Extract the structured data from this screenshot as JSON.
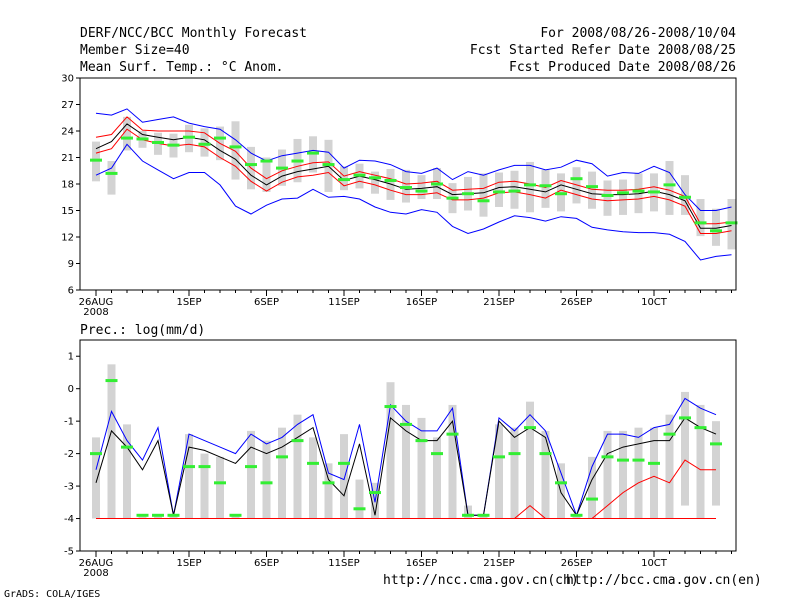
{
  "header": {
    "title": "DERF/NCC/BCC Monthly Forecast",
    "member": "Member Size=40",
    "variable": "Mean Surf. Temp.: °C Anom.",
    "period": "For 2008/08/26-2008/10/04",
    "started": "Fcst Started Refer Date 2008/08/25",
    "produced": "Fcst Produced Date 2008/08/26"
  },
  "prec_label": "Prec.: log(mm/d)",
  "footer": {
    "credit": "GrADS: COLA/IGES",
    "url_ncc": "http://ncc.cma.gov.cn(ch)",
    "url_bcc": "http://bcc.cma.gov.cn(en)"
  },
  "colors": {
    "blue": "#0000ff",
    "red": "#ff0000",
    "black": "#000000",
    "green": "#33ee33",
    "box": "#d3d3d3"
  },
  "chart_data": [
    {
      "type": "line",
      "title": "Mean Surf. Temp.: °C Anom.",
      "ylim": [
        6,
        30
      ],
      "yticks": [
        6,
        9,
        12,
        15,
        18,
        21,
        24,
        27,
        30
      ],
      "x_ticks": [
        {
          "day": 0,
          "label": "26AUG",
          "sub": "2008"
        },
        {
          "day": 6,
          "label": "1SEP"
        },
        {
          "day": 11,
          "label": "6SEP"
        },
        {
          "day": 16,
          "label": "11SEP"
        },
        {
          "day": 21,
          "label": "16SEP"
        },
        {
          "day": 26,
          "label": "21SEP"
        },
        {
          "day": 31,
          "label": "26SEP"
        },
        {
          "day": 36,
          "label": "10CT"
        }
      ],
      "days": 40,
      "series": [
        {
          "name": "max",
          "color": "#0000ff",
          "values": [
            26.0,
            25.8,
            26.5,
            25.0,
            25.3,
            25.6,
            24.9,
            24.5,
            24.2,
            23.0,
            21.5,
            20.6,
            21.2,
            21.5,
            21.8,
            21.6,
            19.8,
            20.7,
            20.6,
            20.2,
            19.4,
            19.2,
            19.8,
            18.5,
            19.4,
            19.0,
            19.6,
            20.1,
            20.1,
            19.6,
            19.9,
            20.7,
            20.3,
            18.9,
            19.3,
            19.2,
            20.0,
            19.3,
            16.8,
            15.0,
            15.0,
            15.4
          ]
        },
        {
          "name": "upper",
          "color": "#ff0000",
          "values": [
            23.3,
            23.6,
            25.6,
            24.1,
            24.0,
            24.0,
            24.0,
            23.8,
            22.6,
            21.7,
            19.8,
            18.6,
            19.5,
            20.0,
            20.4,
            20.5,
            18.9,
            19.4,
            19.0,
            18.6,
            18.0,
            18.1,
            18.3,
            17.3,
            17.4,
            17.5,
            18.2,
            18.3,
            18.0,
            17.6,
            18.4,
            17.9,
            17.4,
            17.3,
            17.3,
            17.4,
            17.7,
            17.3,
            16.6,
            13.5,
            13.5,
            13.7
          ]
        },
        {
          "name": "mean",
          "color": "#000000",
          "values": [
            22.0,
            22.8,
            24.8,
            23.6,
            23.3,
            23.0,
            23.3,
            23.0,
            21.8,
            20.8,
            19.0,
            17.9,
            18.9,
            19.4,
            19.7,
            20.0,
            18.4,
            18.9,
            18.5,
            18.0,
            17.4,
            17.5,
            17.7,
            16.8,
            16.9,
            17.0,
            17.6,
            17.7,
            17.4,
            17.1,
            17.9,
            17.4,
            16.9,
            16.8,
            16.8,
            16.9,
            17.2,
            16.8,
            16.1,
            13.0,
            13.0,
            13.3
          ]
        },
        {
          "name": "lower",
          "color": "#ff0000",
          "values": [
            21.5,
            22.0,
            24.2,
            23.0,
            22.6,
            22.3,
            22.5,
            22.2,
            21.0,
            20.0,
            18.3,
            17.2,
            18.2,
            18.8,
            19.0,
            19.3,
            17.8,
            18.3,
            17.9,
            17.3,
            16.8,
            16.8,
            17.0,
            16.2,
            16.2,
            16.4,
            17.0,
            17.1,
            16.8,
            16.4,
            17.3,
            16.8,
            16.3,
            16.1,
            16.2,
            16.3,
            16.6,
            16.2,
            15.5,
            12.4,
            12.4,
            12.7
          ]
        },
        {
          "name": "min",
          "color": "#0000ff",
          "values": [
            19.0,
            19.8,
            22.5,
            20.6,
            19.6,
            18.6,
            19.3,
            19.3,
            17.9,
            15.5,
            14.6,
            15.6,
            16.3,
            16.4,
            17.4,
            16.5,
            16.6,
            16.3,
            15.4,
            14.8,
            14.6,
            15.1,
            14.8,
            13.2,
            12.4,
            12.9,
            13.7,
            14.4,
            14.2,
            13.8,
            14.3,
            14.1,
            13.1,
            12.8,
            12.6,
            12.5,
            12.5,
            12.3,
            11.5,
            9.4,
            9.8,
            10.0
          ]
        }
      ],
      "boxes": [
        {
          "day": 0,
          "top": 22.8,
          "bot": 18.3,
          "median": 20.7
        },
        {
          "day": 1,
          "top": 20.6,
          "bot": 16.8,
          "median": 19.2
        },
        {
          "day": 2,
          "top": 25.6,
          "bot": 21.8,
          "median": 23.2
        },
        {
          "day": 3,
          "top": 24.0,
          "bot": 22.1,
          "median": 23.1
        },
        {
          "day": 4,
          "top": 23.8,
          "bot": 21.3,
          "median": 22.7
        },
        {
          "day": 5,
          "top": 23.7,
          "bot": 21.0,
          "median": 22.4
        },
        {
          "day": 6,
          "top": 24.7,
          "bot": 21.6,
          "median": 23.3
        },
        {
          "day": 7,
          "top": 24.3,
          "bot": 21.1,
          "median": 22.5
        },
        {
          "day": 8,
          "top": 24.5,
          "bot": 20.7,
          "median": 23.2
        },
        {
          "day": 9,
          "top": 25.1,
          "bot": 18.5,
          "median": 22.2
        },
        {
          "day": 10,
          "top": 22.2,
          "bot": 17.4,
          "median": 20.2
        },
        {
          "day": 11,
          "top": 21.0,
          "bot": 17.1,
          "median": 20.6
        },
        {
          "day": 12,
          "top": 21.9,
          "bot": 17.8,
          "median": 19.8
        },
        {
          "day": 13,
          "top": 23.1,
          "bot": 18.2,
          "median": 20.6
        },
        {
          "day": 14,
          "top": 23.4,
          "bot": 19.3,
          "median": 21.5
        },
        {
          "day": 15,
          "top": 23.0,
          "bot": 17.1,
          "median": 20.2
        },
        {
          "day": 16,
          "top": 20.0,
          "bot": 17.3,
          "median": 18.5
        },
        {
          "day": 17,
          "top": 20.3,
          "bot": 17.5,
          "median": 19.0
        },
        {
          "day": 18,
          "top": 19.4,
          "bot": 16.9,
          "median": 18.7
        },
        {
          "day": 19,
          "top": 19.7,
          "bot": 16.2,
          "median": 18.4
        },
        {
          "day": 20,
          "top": 19.6,
          "bot": 15.9,
          "median": 17.6
        },
        {
          "day": 21,
          "top": 19.0,
          "bot": 16.3,
          "median": 17.2
        },
        {
          "day": 22,
          "top": 19.8,
          "bot": 16.3,
          "median": 18.0
        },
        {
          "day": 23,
          "top": 18.1,
          "bot": 14.7,
          "median": 16.4
        },
        {
          "day": 24,
          "top": 18.8,
          "bot": 15.0,
          "median": 16.9
        },
        {
          "day": 25,
          "top": 19.2,
          "bot": 14.3,
          "median": 16.1
        },
        {
          "day": 26,
          "top": 19.3,
          "bot": 15.4,
          "median": 17.1
        },
        {
          "day": 27,
          "top": 19.5,
          "bot": 15.2,
          "median": 17.2
        },
        {
          "day": 28,
          "top": 20.5,
          "bot": 14.8,
          "median": 17.9
        },
        {
          "day": 29,
          "top": 19.6,
          "bot": 15.3,
          "median": 17.8
        },
        {
          "day": 30,
          "top": 19.2,
          "bot": 14.9,
          "median": 16.9
        },
        {
          "day": 31,
          "top": 19.9,
          "bot": 15.8,
          "median": 18.6
        },
        {
          "day": 32,
          "top": 19.4,
          "bot": 15.2,
          "median": 17.7
        },
        {
          "day": 33,
          "top": 18.4,
          "bot": 14.4,
          "median": 16.7
        },
        {
          "day": 34,
          "top": 18.5,
          "bot": 14.5,
          "median": 17.0
        },
        {
          "day": 35,
          "top": 19.2,
          "bot": 14.7,
          "median": 17.2
        },
        {
          "day": 36,
          "top": 19.2,
          "bot": 14.9,
          "median": 17.1
        },
        {
          "day": 37,
          "top": 20.6,
          "bot": 14.5,
          "median": 17.9
        },
        {
          "day": 38,
          "top": 19.0,
          "bot": 14.5,
          "median": 16.5
        },
        {
          "day": 39,
          "top": 16.3,
          "bot": 12.1,
          "median": 13.6
        },
        {
          "day": 40,
          "top": 15.2,
          "bot": 11.0,
          "median": 12.7
        },
        {
          "day": 41,
          "top": 16.3,
          "bot": 10.6,
          "median": 13.6
        }
      ]
    },
    {
      "type": "line",
      "title": "Prec.: log(mm/d)",
      "ylim": [
        -5,
        1.5
      ],
      "yticks": [
        -5,
        -4,
        -3,
        -2,
        -1,
        0,
        1
      ],
      "x_ticks": [
        {
          "day": 0,
          "label": "26AUG",
          "sub": "2008"
        },
        {
          "day": 6,
          "label": "1SEP"
        },
        {
          "day": 11,
          "label": "6SEP"
        },
        {
          "day": 16,
          "label": "11SEP"
        },
        {
          "day": 21,
          "label": "16SEP"
        },
        {
          "day": 26,
          "label": "21SEP"
        },
        {
          "day": 31,
          "label": "26SEP"
        },
        {
          "day": 36,
          "label": "10CT"
        }
      ],
      "days": 40,
      "series": [
        {
          "name": "max",
          "color": "#0000ff",
          "values": [
            -2.5,
            -0.7,
            -1.6,
            -2.2,
            -1.2,
            -3.9,
            -1.4,
            -1.6,
            -1.8,
            -2.0,
            -1.4,
            -1.7,
            -1.5,
            -1.1,
            -0.8,
            -2.6,
            -2.8,
            -1.1,
            -3.5,
            -0.5,
            -1.0,
            -1.3,
            -1.3,
            -0.6,
            -3.9,
            -3.9,
            -0.9,
            -1.3,
            -0.8,
            -1.3,
            -2.6,
            -3.9,
            -2.4,
            -1.4,
            -1.4,
            -1.5,
            -1.2,
            -1.1,
            -0.3,
            -0.6,
            -0.8
          ]
        },
        {
          "name": "mean",
          "color": "#000000",
          "values": [
            -2.9,
            -1.3,
            -1.8,
            -2.5,
            -1.6,
            -3.9,
            -1.8,
            -1.9,
            -2.1,
            -2.3,
            -1.8,
            -2.0,
            -1.8,
            -1.5,
            -1.2,
            -2.8,
            -3.3,
            -1.7,
            -3.9,
            -0.9,
            -1.3,
            -1.6,
            -1.6,
            -1.0,
            -3.9,
            -3.9,
            -1.0,
            -1.5,
            -1.2,
            -1.5,
            -3.2,
            -3.9,
            -2.8,
            -2.0,
            -1.8,
            -1.7,
            -1.6,
            -1.6,
            -0.9,
            -1.2,
            -1.4
          ]
        },
        {
          "name": "upper_rain",
          "color": "#ff0000",
          "values": [
            -4.0,
            -4.0,
            -4.0,
            -4.0,
            -4.0,
            -4.0,
            -4.0,
            -4.0,
            -4.0,
            -4.0,
            -4.0,
            -4.0,
            -4.0,
            -4.0,
            -4.0,
            -4.0,
            -4.0,
            -4.0,
            -4.0,
            -4.0,
            -4.0,
            -4.0,
            -4.0,
            -4.0,
            -4.0,
            -4.0,
            -4.0,
            -4.0,
            -3.6,
            -4.0,
            -4.0,
            -4.0,
            -4.0,
            -3.6,
            -3.2,
            -2.9,
            -2.7,
            -2.9,
            -2.2,
            -2.5,
            -2.5
          ]
        },
        {
          "name": "baseline",
          "color": "#ff0000",
          "values": [
            -4.0,
            -4.0,
            -4.0,
            -4.0,
            -4.0,
            -4.0,
            -4.0,
            -4.0,
            -4.0,
            -4.0,
            -4.0,
            -4.0,
            -4.0,
            -4.0,
            -4.0,
            -4.0,
            -4.0,
            -4.0,
            -4.0,
            -4.0,
            -4.0,
            -4.0,
            -4.0,
            -4.0,
            -4.0,
            -4.0,
            -4.0,
            -4.0,
            -4.0,
            -4.0,
            -4.0,
            -4.0,
            -4.0,
            -4.0,
            -4.0,
            -4.0,
            -4.0,
            -4.0,
            -4.0,
            -4.0,
            -4.0
          ]
        }
      ],
      "boxes": [
        {
          "day": 0,
          "top": -1.5,
          "bot": -4.0,
          "median": -2.0
        },
        {
          "day": 1,
          "top": 0.75,
          "bot": -4.0,
          "median": 0.25
        },
        {
          "day": 2,
          "top": -1.1,
          "bot": -4.0,
          "median": -1.8
        },
        {
          "day": 3,
          "top": -3.9,
          "bot": -4.0,
          "median": -3.9
        },
        {
          "day": 4,
          "top": -3.9,
          "bot": -4.0,
          "median": -3.9
        },
        {
          "day": 5,
          "top": -3.9,
          "bot": -4.0,
          "median": -3.9
        },
        {
          "day": 6,
          "top": -1.4,
          "bot": -4.0,
          "median": -2.4
        },
        {
          "day": 7,
          "top": -2.0,
          "bot": -4.0,
          "median": -2.4
        },
        {
          "day": 8,
          "top": -2.1,
          "bot": -4.0,
          "median": -2.9
        },
        {
          "day": 9,
          "top": -3.9,
          "bot": -4.0,
          "median": -3.9
        },
        {
          "day": 10,
          "top": -1.3,
          "bot": -4.0,
          "median": -2.4
        },
        {
          "day": 11,
          "top": -1.6,
          "bot": -4.0,
          "median": -2.9
        },
        {
          "day": 12,
          "top": -1.2,
          "bot": -4.0,
          "median": -2.1
        },
        {
          "day": 13,
          "top": -0.8,
          "bot": -4.0,
          "median": -1.6
        },
        {
          "day": 14,
          "top": -1.5,
          "bot": -4.0,
          "median": -2.3
        },
        {
          "day": 15,
          "top": -2.3,
          "bot": -4.0,
          "median": -2.9
        },
        {
          "day": 16,
          "top": -1.4,
          "bot": -4.0,
          "median": -2.3
        },
        {
          "day": 17,
          "top": -2.8,
          "bot": -4.0,
          "median": -3.7
        },
        {
          "day": 18,
          "top": -2.9,
          "bot": -4.0,
          "median": -3.2
        },
        {
          "day": 19,
          "top": 0.2,
          "bot": -4.0,
          "median": -0.55
        },
        {
          "day": 20,
          "top": -0.5,
          "bot": -4.0,
          "median": -1.1
        },
        {
          "day": 21,
          "top": -0.9,
          "bot": -4.0,
          "median": -1.6
        },
        {
          "day": 22,
          "top": -1.5,
          "bot": -4.0,
          "median": -2.0
        },
        {
          "day": 23,
          "top": -0.5,
          "bot": -4.0,
          "median": -1.4
        },
        {
          "day": 24,
          "top": -3.6,
          "bot": -4.0,
          "median": -3.9
        },
        {
          "day": 25,
          "top": -3.9,
          "bot": -4.0,
          "median": -3.9
        },
        {
          "day": 26,
          "top": -1.1,
          "bot": -4.0,
          "median": -2.1
        },
        {
          "day": 27,
          "top": -1.2,
          "bot": -4.0,
          "median": -2.0
        },
        {
          "day": 28,
          "top": -0.4,
          "bot": -4.0,
          "median": -1.2
        },
        {
          "day": 29,
          "top": -1.3,
          "bot": -4.0,
          "median": -2.0
        },
        {
          "day": 30,
          "top": -2.3,
          "bot": -4.0,
          "median": -2.9
        },
        {
          "day": 31,
          "top": -3.9,
          "bot": -4.0,
          "median": -3.9
        },
        {
          "day": 32,
          "top": -2.1,
          "bot": -4.0,
          "median": -3.4
        },
        {
          "day": 33,
          "top": -1.3,
          "bot": -4.0,
          "median": -2.1
        },
        {
          "day": 34,
          "top": -1.3,
          "bot": -4.0,
          "median": -2.2
        },
        {
          "day": 35,
          "top": -1.2,
          "bot": -4.0,
          "median": -2.2
        },
        {
          "day": 36,
          "top": -1.2,
          "bot": -4.0,
          "median": -2.3
        },
        {
          "day": 37,
          "top": -0.8,
          "bot": -4.0,
          "median": -1.4
        },
        {
          "day": 38,
          "top": -0.1,
          "bot": -3.6,
          "median": -0.9
        },
        {
          "day": 39,
          "top": -0.5,
          "bot": -4.0,
          "median": -1.2
        },
        {
          "day": 40,
          "top": -1.0,
          "bot": -3.6,
          "median": -1.7
        }
      ]
    }
  ]
}
